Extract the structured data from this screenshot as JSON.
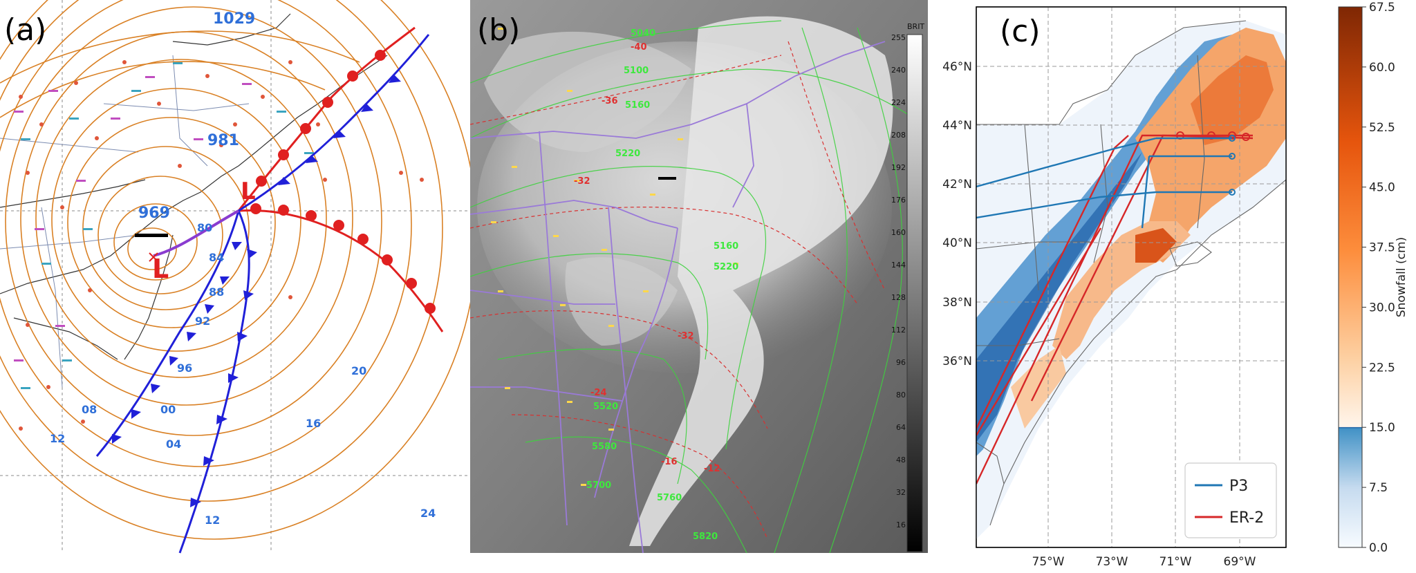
{
  "panel_a": {
    "tag": "(a)",
    "pressures": [
      "1029",
      "981",
      "969"
    ],
    "low_letters": [
      "L",
      "L"
    ],
    "isobar_labels": [
      "80",
      "84",
      "88",
      "92",
      "96",
      "00",
      "04",
      "08",
      "12",
      "12",
      "16",
      "20",
      "24"
    ]
  },
  "panel_b": {
    "tag": "(b)",
    "grey_bar_title": "BRIT",
    "grey_bar_ticks": [
      "255",
      "240",
      "224",
      "208",
      "192",
      "176",
      "160",
      "144",
      "128",
      "112",
      "96",
      "80",
      "64",
      "48",
      "32",
      "16"
    ],
    "heights_green": [
      "5040",
      "5100",
      "5160",
      "5220",
      "5160",
      "5220",
      "5520",
      "5580",
      "5700",
      "5760",
      "5820"
    ],
    "temps_red": [
      "-40",
      "-36",
      "-32",
      "-32",
      "-24",
      "-16",
      "-12"
    ]
  },
  "panel_c": {
    "tag": "(c)",
    "lat_labels": [
      "46°N",
      "44°N",
      "42°N",
      "40°N",
      "38°N",
      "36°N"
    ],
    "lon_labels": [
      "75°W",
      "73°W",
      "71°W",
      "69°W"
    ],
    "legend": [
      {
        "label": "P3",
        "color": "#1f77b4"
      },
      {
        "label": "ER-2",
        "color": "#d62728"
      }
    ],
    "colorbar": {
      "label": "Snowfall (cm)",
      "ticks": [
        "67.5",
        "60.0",
        "52.5",
        "45.0",
        "37.5",
        "30.0",
        "22.5",
        "15.0",
        "7.5",
        "0.0"
      ],
      "min": 0,
      "max": 67.5
    }
  }
}
